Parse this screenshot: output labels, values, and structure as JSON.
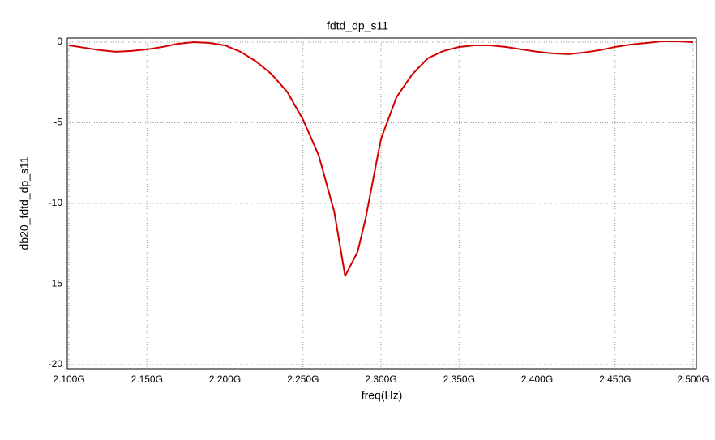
{
  "chart_data": {
    "type": "line",
    "title": "fdtd_dp_s11",
    "x_label": "freq(Hz)",
    "y_label": "db20_fdtd_dp_s11",
    "x": [
      2100000000,
      2110000000,
      2120000000,
      2130000000,
      2140000000,
      2150000000,
      2160000000,
      2170000000,
      2180000000,
      2190000000,
      2200000000,
      2210000000,
      2220000000,
      2230000000,
      2240000000,
      2250000000,
      2260000000,
      2270000000,
      2277000000,
      2285000000,
      2290000000,
      2300000000,
      2310000000,
      2320000000,
      2330000000,
      2340000000,
      2350000000,
      2360000000,
      2370000000,
      2380000000,
      2390000000,
      2400000000,
      2410000000,
      2420000000,
      2430000000,
      2440000000,
      2450000000,
      2460000000,
      2470000000,
      2480000000,
      2490000000,
      2500000000
    ],
    "values": [
      -0.2,
      -0.35,
      -0.5,
      -0.6,
      -0.55,
      -0.45,
      -0.3,
      -0.1,
      0,
      -0.05,
      -0.2,
      -0.6,
      -1.2,
      -2.0,
      -3.1,
      -4.8,
      -7.0,
      -10.5,
      -14.5,
      -13.0,
      -11.0,
      -6.0,
      -3.4,
      -2.0,
      -1.0,
      -0.55,
      -0.3,
      -0.2,
      -0.2,
      -0.3,
      -0.45,
      -0.6,
      -0.7,
      -0.75,
      -0.65,
      -0.5,
      -0.3,
      -0.15,
      -0.05,
      0.05,
      0.05,
      0
    ],
    "color": "#d40000",
    "xlim": [
      2100000000,
      2500000000
    ],
    "xticks": [
      {
        "value": 2100000000,
        "label": "2.100G"
      },
      {
        "value": 2150000000,
        "label": "2.150G"
      },
      {
        "value": 2200000000,
        "label": "2.200G"
      },
      {
        "value": 2250000000,
        "label": "2.250G"
      },
      {
        "value": 2300000000,
        "label": "2.300G"
      },
      {
        "value": 2350000000,
        "label": "2.350G"
      },
      {
        "value": 2400000000,
        "label": "2.400G"
      },
      {
        "value": 2450000000,
        "label": "2.450G"
      },
      {
        "value": 2500000000,
        "label": "2.500G"
      }
    ],
    "ylim": [
      -20.25,
      0.25
    ],
    "yticks": [
      -20,
      -15,
      -10,
      -5,
      0
    ],
    "grid": true
  }
}
